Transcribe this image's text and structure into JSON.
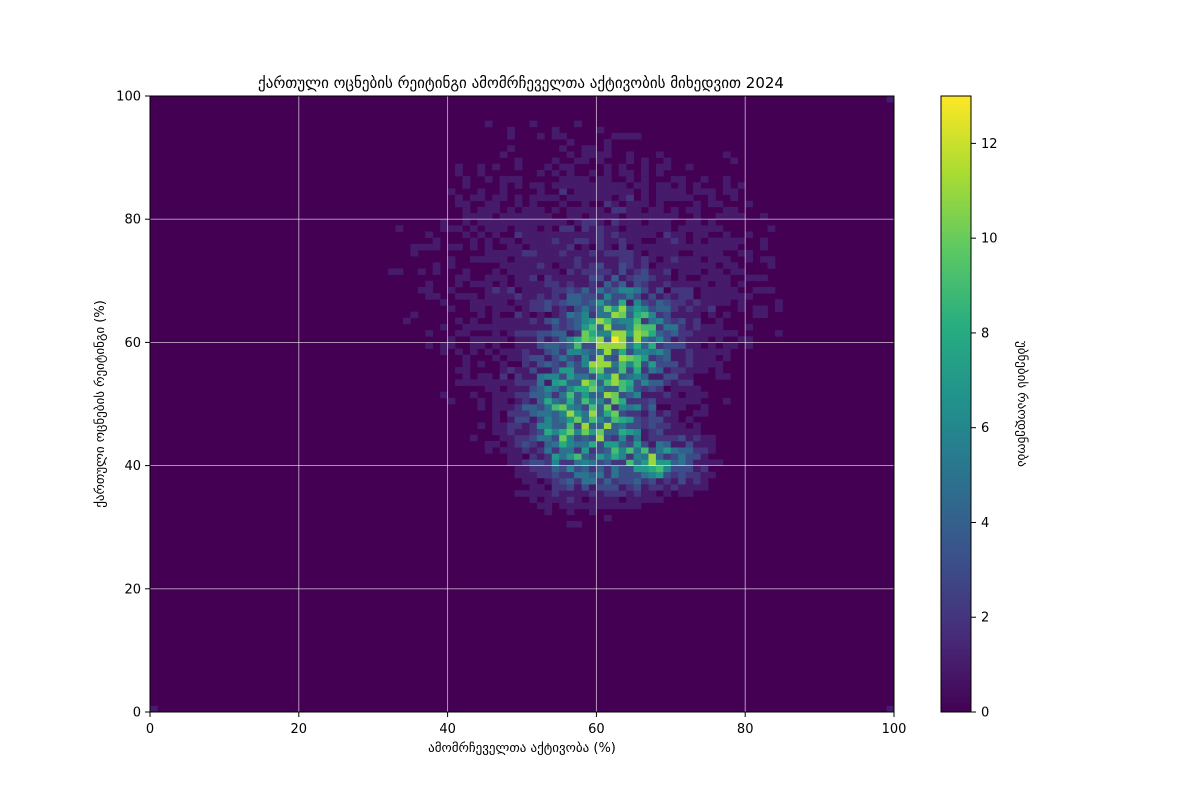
{
  "chart_data": {
    "type": "heatmap",
    "title": "ქართული ოცნების რეიტინგი ამომრჩეველთა აქტივობის მიხედვით 2024",
    "xlabel": "ამომრჩეველთა აქტივობა (%)",
    "ylabel": "ქართული ოცნების რეიტინგი (%)",
    "xlim": [
      0,
      100
    ],
    "ylim": [
      0,
      100
    ],
    "bins": 100,
    "grid": true,
    "colormap": "viridis",
    "colorbar": {
      "label": "უბნების რაოდენობა",
      "range": [
        0,
        13
      ],
      "ticks": [
        0,
        2,
        4,
        6,
        8,
        10,
        12
      ]
    },
    "x_ticks": [
      0,
      20,
      40,
      60,
      80,
      100
    ],
    "y_ticks": [
      0,
      20,
      40,
      60,
      80,
      100
    ],
    "clusters": [
      {
        "x_center": 58.5,
        "y_center": 47.0,
        "x_sd": 5.0,
        "y_sd": 6.5,
        "peak_count": 8
      },
      {
        "x_center": 63.0,
        "y_center": 61.0,
        "x_sd": 4.5,
        "y_sd": 5.0,
        "peak_count": 8
      },
      {
        "x_center": 68.5,
        "y_center": 40.5,
        "x_sd": 3.5,
        "y_sd": 2.5,
        "peak_count": 6
      },
      {
        "x_center": 60.0,
        "y_center": 70.0,
        "x_sd": 16.0,
        "y_sd": 16.0,
        "peak_count": 1.4
      }
    ],
    "highlight_cells": [
      {
        "x": 62.5,
        "y": 60.5,
        "count": 13
      },
      {
        "x": 59.5,
        "y": 53.5,
        "count": 9
      },
      {
        "x": 67.5,
        "y": 39.5,
        "count": 8
      },
      {
        "x": 0.5,
        "y": 0.5,
        "count": 1
      },
      {
        "x": 99.5,
        "y": 0.5,
        "count": 1
      },
      {
        "x": 99.5,
        "y": 99.5,
        "count": 1
      }
    ]
  }
}
